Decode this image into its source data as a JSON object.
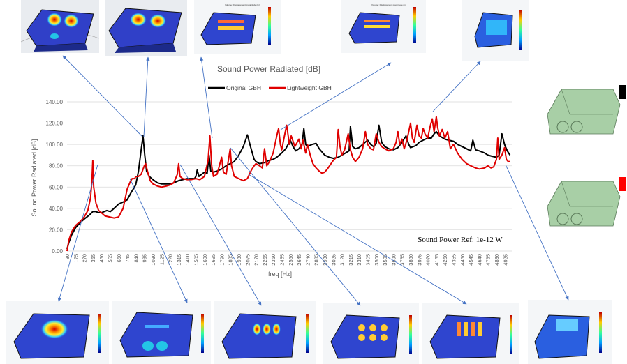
{
  "chart_data": {
    "type": "line",
    "title": "Sound Power Radiated [dB]",
    "xlabel": "freq [Hz]",
    "ylabel": "Sound Power Radiated [dB]",
    "annotation": "Sound Power Ref: 1e-12 W",
    "ylim": [
      0,
      140
    ],
    "yticks": [
      "0.00",
      "20.00",
      "40.00",
      "60.00",
      "80.00",
      "100.00",
      "120.00",
      "140.00"
    ],
    "xlim": [
      80,
      5000
    ],
    "xticks": [
      "80",
      "175",
      "270",
      "365",
      "460",
      "555",
      "650",
      "745",
      "840",
      "935",
      "1030",
      "1125",
      "1220",
      "1315",
      "1410",
      "1505",
      "1600",
      "1695",
      "1790",
      "1885",
      "1980",
      "2075",
      "2170",
      "2265",
      "2360",
      "2455",
      "2550",
      "2645",
      "2740",
      "2835",
      "2930",
      "3025",
      "3120",
      "3215",
      "3310",
      "3405",
      "3500",
      "3595",
      "3690",
      "3785",
      "3880",
      "3975",
      "4070",
      "4165",
      "4260",
      "4355",
      "4450",
      "4545",
      "4640",
      "4735",
      "4830",
      "4925"
    ],
    "grid": true,
    "legend_position": "top",
    "series": [
      {
        "name": "Original GBH",
        "color": "#000000",
        "points": [
          [
            80,
            2
          ],
          [
            100,
            8
          ],
          [
            130,
            15
          ],
          [
            175,
            22
          ],
          [
            230,
            27
          ],
          [
            270,
            30
          ],
          [
            330,
            34
          ],
          [
            365,
            37
          ],
          [
            400,
            37
          ],
          [
            430,
            36
          ],
          [
            460,
            36
          ],
          [
            520,
            38
          ],
          [
            560,
            37
          ],
          [
            600,
            40
          ],
          [
            650,
            44
          ],
          [
            700,
            46
          ],
          [
            745,
            48
          ],
          [
            790,
            55
          ],
          [
            840,
            62
          ],
          [
            870,
            75
          ],
          [
            900,
            95
          ],
          [
            920,
            108
          ],
          [
            940,
            90
          ],
          [
            960,
            75
          ],
          [
            990,
            70
          ],
          [
            1030,
            67
          ],
          [
            1080,
            64
          ],
          [
            1125,
            63
          ],
          [
            1180,
            63
          ],
          [
            1220,
            63
          ],
          [
            1260,
            64
          ],
          [
            1315,
            66
          ],
          [
            1360,
            67
          ],
          [
            1410,
            68
          ],
          [
            1450,
            68
          ],
          [
            1490,
            68
          ],
          [
            1505,
            70
          ],
          [
            1520,
            76
          ],
          [
            1540,
            70
          ],
          [
            1570,
            72
          ],
          [
            1600,
            74
          ],
          [
            1630,
            73
          ],
          [
            1650,
            90
          ],
          [
            1670,
            75
          ],
          [
            1695,
            74
          ],
          [
            1740,
            75
          ],
          [
            1790,
            77
          ],
          [
            1840,
            80
          ],
          [
            1885,
            82
          ],
          [
            1930,
            84
          ],
          [
            1980,
            90
          ],
          [
            2030,
            98
          ],
          [
            2075,
            109
          ],
          [
            2110,
            98
          ],
          [
            2150,
            86
          ],
          [
            2170,
            84
          ],
          [
            2210,
            82
          ],
          [
            2265,
            83
          ],
          [
            2310,
            85
          ],
          [
            2360,
            86
          ],
          [
            2400,
            88
          ],
          [
            2455,
            92
          ],
          [
            2500,
            96
          ],
          [
            2550,
            104
          ],
          [
            2580,
            98
          ],
          [
            2610,
            94
          ],
          [
            2645,
            96
          ],
          [
            2680,
            100
          ],
          [
            2700,
            115
          ],
          [
            2720,
            100
          ],
          [
            2740,
            98
          ],
          [
            2790,
            100
          ],
          [
            2835,
            101
          ],
          [
            2870,
            96
          ],
          [
            2930,
            90
          ],
          [
            2980,
            88
          ],
          [
            3025,
            87
          ],
          [
            3080,
            88
          ],
          [
            3120,
            90
          ],
          [
            3160,
            92
          ],
          [
            3200,
            94
          ],
          [
            3215,
            117
          ],
          [
            3240,
            98
          ],
          [
            3270,
            96
          ],
          [
            3310,
            97
          ],
          [
            3350,
            100
          ],
          [
            3405,
            104
          ],
          [
            3440,
            100
          ],
          [
            3470,
            98
          ],
          [
            3500,
            101
          ],
          [
            3530,
            118
          ],
          [
            3560,
            102
          ],
          [
            3595,
            98
          ],
          [
            3640,
            96
          ],
          [
            3690,
            95
          ],
          [
            3740,
            97
          ],
          [
            3785,
            102
          ],
          [
            3830,
            108
          ],
          [
            3860,
            100
          ],
          [
            3880,
            97
          ],
          [
            3940,
            99
          ],
          [
            3975,
            102
          ],
          [
            4020,
            104
          ],
          [
            4070,
            106
          ],
          [
            4110,
            106
          ],
          [
            4140,
            110
          ],
          [
            4165,
            112
          ],
          [
            4200,
            108
          ],
          [
            4260,
            105
          ],
          [
            4300,
            104
          ],
          [
            4355,
            103
          ],
          [
            4400,
            100
          ],
          [
            4450,
            98
          ],
          [
            4500,
            96
          ],
          [
            4545,
            94
          ],
          [
            4570,
            104
          ],
          [
            4600,
            95
          ],
          [
            4640,
            94
          ],
          [
            4700,
            92
          ],
          [
            4735,
            90
          ],
          [
            4780,
            89
          ],
          [
            4830,
            88
          ],
          [
            4860,
            90
          ],
          [
            4890,
            110
          ],
          [
            4920,
            100
          ],
          [
            4950,
            94
          ],
          [
            4980,
            90
          ]
        ]
      },
      {
        "name": "Lightweight GBH",
        "color": "#e00000",
        "points": [
          [
            80,
            0
          ],
          [
            100,
            10
          ],
          [
            130,
            18
          ],
          [
            175,
            24
          ],
          [
            230,
            28
          ],
          [
            270,
            32
          ],
          [
            310,
            38
          ],
          [
            340,
            50
          ],
          [
            355,
            65
          ],
          [
            365,
            85
          ],
          [
            375,
            60
          ],
          [
            400,
            45
          ],
          [
            430,
            38
          ],
          [
            460,
            36
          ],
          [
            500,
            33
          ],
          [
            550,
            32
          ],
          [
            600,
            31
          ],
          [
            650,
            32
          ],
          [
            700,
            40
          ],
          [
            745,
            58
          ],
          [
            780,
            65
          ],
          [
            800,
            68
          ],
          [
            830,
            68
          ],
          [
            840,
            70
          ],
          [
            870,
            70
          ],
          [
            900,
            72
          ],
          [
            935,
            80
          ],
          [
            950,
            82
          ],
          [
            970,
            75
          ],
          [
            1000,
            66
          ],
          [
            1030,
            63
          ],
          [
            1080,
            61
          ],
          [
            1125,
            60
          ],
          [
            1180,
            61
          ],
          [
            1220,
            62
          ],
          [
            1260,
            64
          ],
          [
            1300,
            72
          ],
          [
            1315,
            82
          ],
          [
            1330,
            70
          ],
          [
            1360,
            68
          ],
          [
            1410,
            67
          ],
          [
            1450,
            67
          ],
          [
            1505,
            68
          ],
          [
            1550,
            67
          ],
          [
            1600,
            70
          ],
          [
            1640,
            85
          ],
          [
            1660,
            108
          ],
          [
            1680,
            80
          ],
          [
            1700,
            70
          ],
          [
            1740,
            72
          ],
          [
            1790,
            88
          ],
          [
            1810,
            74
          ],
          [
            1840,
            72
          ],
          [
            1885,
            96
          ],
          [
            1900,
            80
          ],
          [
            1930,
            70
          ],
          [
            1980,
            68
          ],
          [
            2030,
            66
          ],
          [
            2075,
            68
          ],
          [
            2120,
            76
          ],
          [
            2150,
            80
          ],
          [
            2170,
            82
          ],
          [
            2210,
            80
          ],
          [
            2240,
            78
          ],
          [
            2265,
            96
          ],
          [
            2290,
            80
          ],
          [
            2320,
            84
          ],
          [
            2360,
            92
          ],
          [
            2400,
            108
          ],
          [
            2420,
            115
          ],
          [
            2440,
            100
          ],
          [
            2455,
            95
          ],
          [
            2490,
            110
          ],
          [
            2510,
            118
          ],
          [
            2540,
            100
          ],
          [
            2560,
            108
          ],
          [
            2600,
            98
          ],
          [
            2645,
            105
          ],
          [
            2670,
            96
          ],
          [
            2690,
            104
          ],
          [
            2720,
            92
          ],
          [
            2740,
            100
          ],
          [
            2770,
            90
          ],
          [
            2800,
            82
          ],
          [
            2835,
            78
          ],
          [
            2870,
            75
          ],
          [
            2900,
            73
          ],
          [
            2930,
            74
          ],
          [
            2960,
            77
          ],
          [
            3000,
            82
          ],
          [
            3025,
            85
          ],
          [
            3060,
            88
          ],
          [
            3080,
            114
          ],
          [
            3100,
            98
          ],
          [
            3120,
            90
          ],
          [
            3150,
            95
          ],
          [
            3190,
            110
          ],
          [
            3215,
            95
          ],
          [
            3240,
            88
          ],
          [
            3270,
            84
          ],
          [
            3310,
            88
          ],
          [
            3350,
            96
          ],
          [
            3380,
            112
          ],
          [
            3405,
            100
          ],
          [
            3440,
            96
          ],
          [
            3470,
            95
          ],
          [
            3500,
            110
          ],
          [
            3530,
            102
          ],
          [
            3560,
            98
          ],
          [
            3595,
            96
          ],
          [
            3640,
            94
          ],
          [
            3690,
            96
          ],
          [
            3720,
            102
          ],
          [
            3740,
            112
          ],
          [
            3760,
            100
          ],
          [
            3785,
            105
          ],
          [
            3810,
            96
          ],
          [
            3840,
            104
          ],
          [
            3880,
            120
          ],
          [
            3900,
            106
          ],
          [
            3920,
            102
          ],
          [
            3950,
            118
          ],
          [
            3975,
            108
          ],
          [
            4000,
            106
          ],
          [
            4020,
            115
          ],
          [
            4040,
            110
          ],
          [
            4070,
            106
          ],
          [
            4100,
            118
          ],
          [
            4120,
            124
          ],
          [
            4140,
            112
          ],
          [
            4165,
            126
          ],
          [
            4180,
            116
          ],
          [
            4200,
            108
          ],
          [
            4230,
            114
          ],
          [
            4260,
            106
          ],
          [
            4290,
            112
          ],
          [
            4320,
            96
          ],
          [
            4355,
            100
          ],
          [
            4400,
            92
          ],
          [
            4450,
            86
          ],
          [
            4500,
            82
          ],
          [
            4545,
            80
          ],
          [
            4600,
            78
          ],
          [
            4640,
            77
          ],
          [
            4700,
            78
          ],
          [
            4735,
            80
          ],
          [
            4770,
            78
          ],
          [
            4800,
            79
          ],
          [
            4830,
            86
          ],
          [
            4845,
            106
          ],
          [
            4860,
            86
          ],
          [
            4890,
            90
          ],
          [
            4920,
            97
          ],
          [
            4940,
            86
          ],
          [
            4960,
            84
          ],
          [
            4980,
            84
          ]
        ]
      }
    ]
  },
  "thumbnails": {
    "label_top": "Volume: Displacement magnitude (m)"
  },
  "colors": {
    "background": "#ffffff",
    "gridline": "#d9d9d9",
    "axis_text": "#595959",
    "arrow": "#4472c4",
    "legend_black_marker": "#000000",
    "legend_red_marker": "#ff0000",
    "model_green": "#a8cfa6"
  }
}
